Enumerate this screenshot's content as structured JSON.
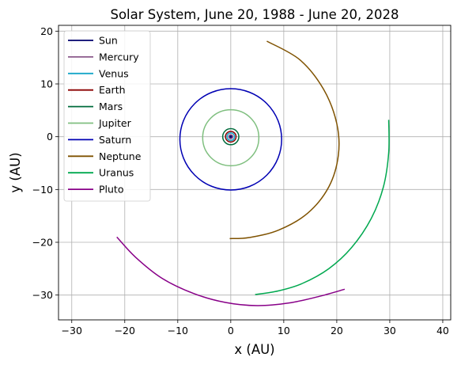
{
  "chart_data": {
    "type": "line",
    "title": "Solar System, June 20, 1988 - June 20, 2028",
    "xlabel": "x (AU)",
    "ylabel": "y (AU)",
    "xlim": [
      -32.5,
      41.5
    ],
    "ylim": [
      -34.7,
      21.1
    ],
    "xticks": [
      -30,
      -20,
      -10,
      0,
      10,
      20,
      30,
      40
    ],
    "yticks": [
      -30,
      -20,
      -10,
      0,
      10,
      20
    ],
    "xtick_labels": [
      "−30",
      "−20",
      "−10",
      "0",
      "10",
      "20",
      "30",
      "40"
    ],
    "ytick_labels": [
      "−30",
      "−20",
      "−10",
      "0",
      "10",
      "20"
    ],
    "grid": true,
    "legend_position": "top-left",
    "series": [
      {
        "name": "Sun",
        "color": "#00006b",
        "kind": "point",
        "center": [
          0,
          0
        ]
      },
      {
        "name": "Mercury",
        "color": "#8c5a8c",
        "kind": "ellipse",
        "center": [
          0,
          0
        ],
        "rx": 0.39,
        "ry": 0.39
      },
      {
        "name": "Venus",
        "color": "#17a6c8",
        "kind": "ellipse",
        "center": [
          0,
          0
        ],
        "rx": 0.72,
        "ry": 0.72
      },
      {
        "name": "Earth",
        "color": "#8b0000",
        "kind": "ellipse",
        "center": [
          0,
          0
        ],
        "rx": 1.0,
        "ry": 1.0
      },
      {
        "name": "Mars",
        "color": "#006b3c",
        "kind": "ellipse",
        "center": [
          0,
          0
        ],
        "rx": 1.52,
        "ry": 1.52
      },
      {
        "name": "Jupiter",
        "color": "#7fbf7f",
        "kind": "ellipse",
        "center": [
          0,
          -0.2
        ],
        "rx": 5.3,
        "ry": 5.3
      },
      {
        "name": "Saturn",
        "color": "#0000b3",
        "kind": "ellipse",
        "center": [
          0,
          -0.5
        ],
        "rx": 9.6,
        "ry": 9.6
      },
      {
        "name": "Neptune",
        "color": "#7f5200",
        "kind": "line",
        "x": [
          6.8,
          13.0,
          17.5,
          20.0,
          20.3,
          18.5,
          14.5,
          9.0,
          3.5,
          -0.2
        ],
        "y": [
          18.1,
          14.6,
          9.0,
          2.5,
          -3.5,
          -9.5,
          -14.5,
          -17.7,
          -19.1,
          -19.3
        ]
      },
      {
        "name": "Uranus",
        "color": "#00a84f",
        "kind": "line",
        "x": [
          29.8,
          29.8,
          28.8,
          26.5,
          22.8,
          18.5,
          13.5,
          9.0,
          4.6
        ],
        "y": [
          3.2,
          -3.0,
          -9.5,
          -15.5,
          -21.0,
          -25.0,
          -27.8,
          -29.2,
          -29.9
        ]
      },
      {
        "name": "Pluto",
        "color": "#880088",
        "kind": "line",
        "x": [
          -21.5,
          -18.0,
          -13.0,
          -7.0,
          -1.0,
          5.0,
          11.0,
          16.5,
          21.5
        ],
        "y": [
          -19.0,
          -22.8,
          -26.8,
          -29.7,
          -31.4,
          -32.0,
          -31.5,
          -30.3,
          -28.9
        ]
      }
    ]
  }
}
